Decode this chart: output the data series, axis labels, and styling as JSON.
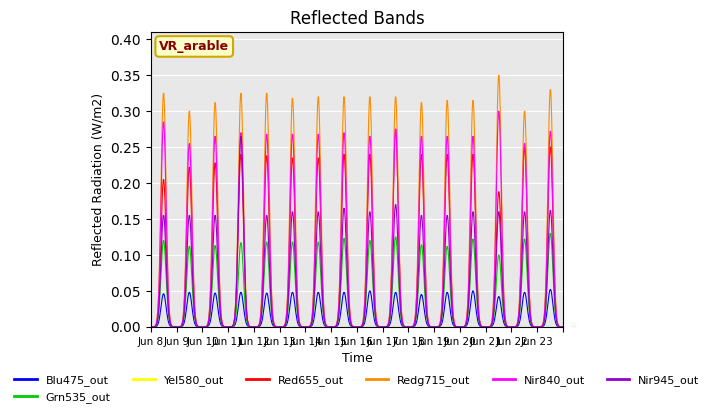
{
  "title": "Reflected Bands",
  "xlabel": "Time",
  "ylabel": "Reflected Radiation (W/m2)",
  "annotation": "VR_arable",
  "ylim": [
    0.0,
    0.41
  ],
  "yticks": [
    0.0,
    0.05,
    0.1,
    0.15,
    0.2,
    0.25,
    0.3,
    0.35,
    0.4
  ],
  "xtick_labels": [
    "Jun 8",
    "Jun 9",
    "Jun 10",
    "Jun 11",
    "Jun 12",
    "Jun 13",
    "Jun 14",
    "Jun 15",
    "Jun 16",
    "Jun 17",
    "Jun 18",
    "Jun 19",
    "Jun 20",
    "Jun 21",
    "Jun 22",
    "Jun 23",
    ""
  ],
  "series": [
    {
      "name": "Blu475_out",
      "color": "#0000ff"
    },
    {
      "name": "Grn535_out",
      "color": "#00cc00"
    },
    {
      "name": "Yel580_out",
      "color": "#ffff00"
    },
    {
      "name": "Red655_out",
      "color": "#ff0000"
    },
    {
      "name": "Redg715_out",
      "color": "#ff8c00"
    },
    {
      "name": "Nir840_out",
      "color": "#ff00ff"
    },
    {
      "name": "Nir945_out",
      "color": "#9900cc"
    }
  ],
  "num_days": 16,
  "background_color": "#e8e8e8",
  "daily_peaks": {
    "Blu475_out": [
      0.046,
      0.048,
      0.047,
      0.048,
      0.047,
      0.048,
      0.048,
      0.048,
      0.05,
      0.048,
      0.045,
      0.048,
      0.05,
      0.042,
      0.048,
      0.052
    ],
    "Grn535_out": [
      0.12,
      0.112,
      0.113,
      0.117,
      0.118,
      0.118,
      0.118,
      0.123,
      0.12,
      0.125,
      0.114,
      0.112,
      0.122,
      0.1,
      0.122,
      0.13
    ],
    "Yel580_out": [
      0.0,
      0.0,
      0.0,
      0.0,
      0.0,
      0.0,
      0.0,
      0.0,
      0.0,
      0.0,
      0.0,
      0.0,
      0.0,
      0.0,
      0.0,
      0.0
    ],
    "Red655_out": [
      0.205,
      0.222,
      0.228,
      0.24,
      0.238,
      0.235,
      0.235,
      0.24,
      0.24,
      0.275,
      0.24,
      0.24,
      0.24,
      0.188,
      0.25,
      0.25
    ],
    "Redg715_out": [
      0.325,
      0.3,
      0.312,
      0.325,
      0.325,
      0.318,
      0.32,
      0.32,
      0.32,
      0.32,
      0.312,
      0.315,
      0.315,
      0.35,
      0.3,
      0.33
    ],
    "Nir840_out": [
      0.285,
      0.255,
      0.265,
      0.27,
      0.268,
      0.268,
      0.268,
      0.27,
      0.265,
      0.275,
      0.265,
      0.265,
      0.265,
      0.3,
      0.255,
      0.272
    ],
    "Nir945_out": [
      0.155,
      0.155,
      0.155,
      0.265,
      0.155,
      0.16,
      0.16,
      0.165,
      0.16,
      0.17,
      0.155,
      0.155,
      0.16,
      0.16,
      0.16,
      0.162
    ]
  }
}
